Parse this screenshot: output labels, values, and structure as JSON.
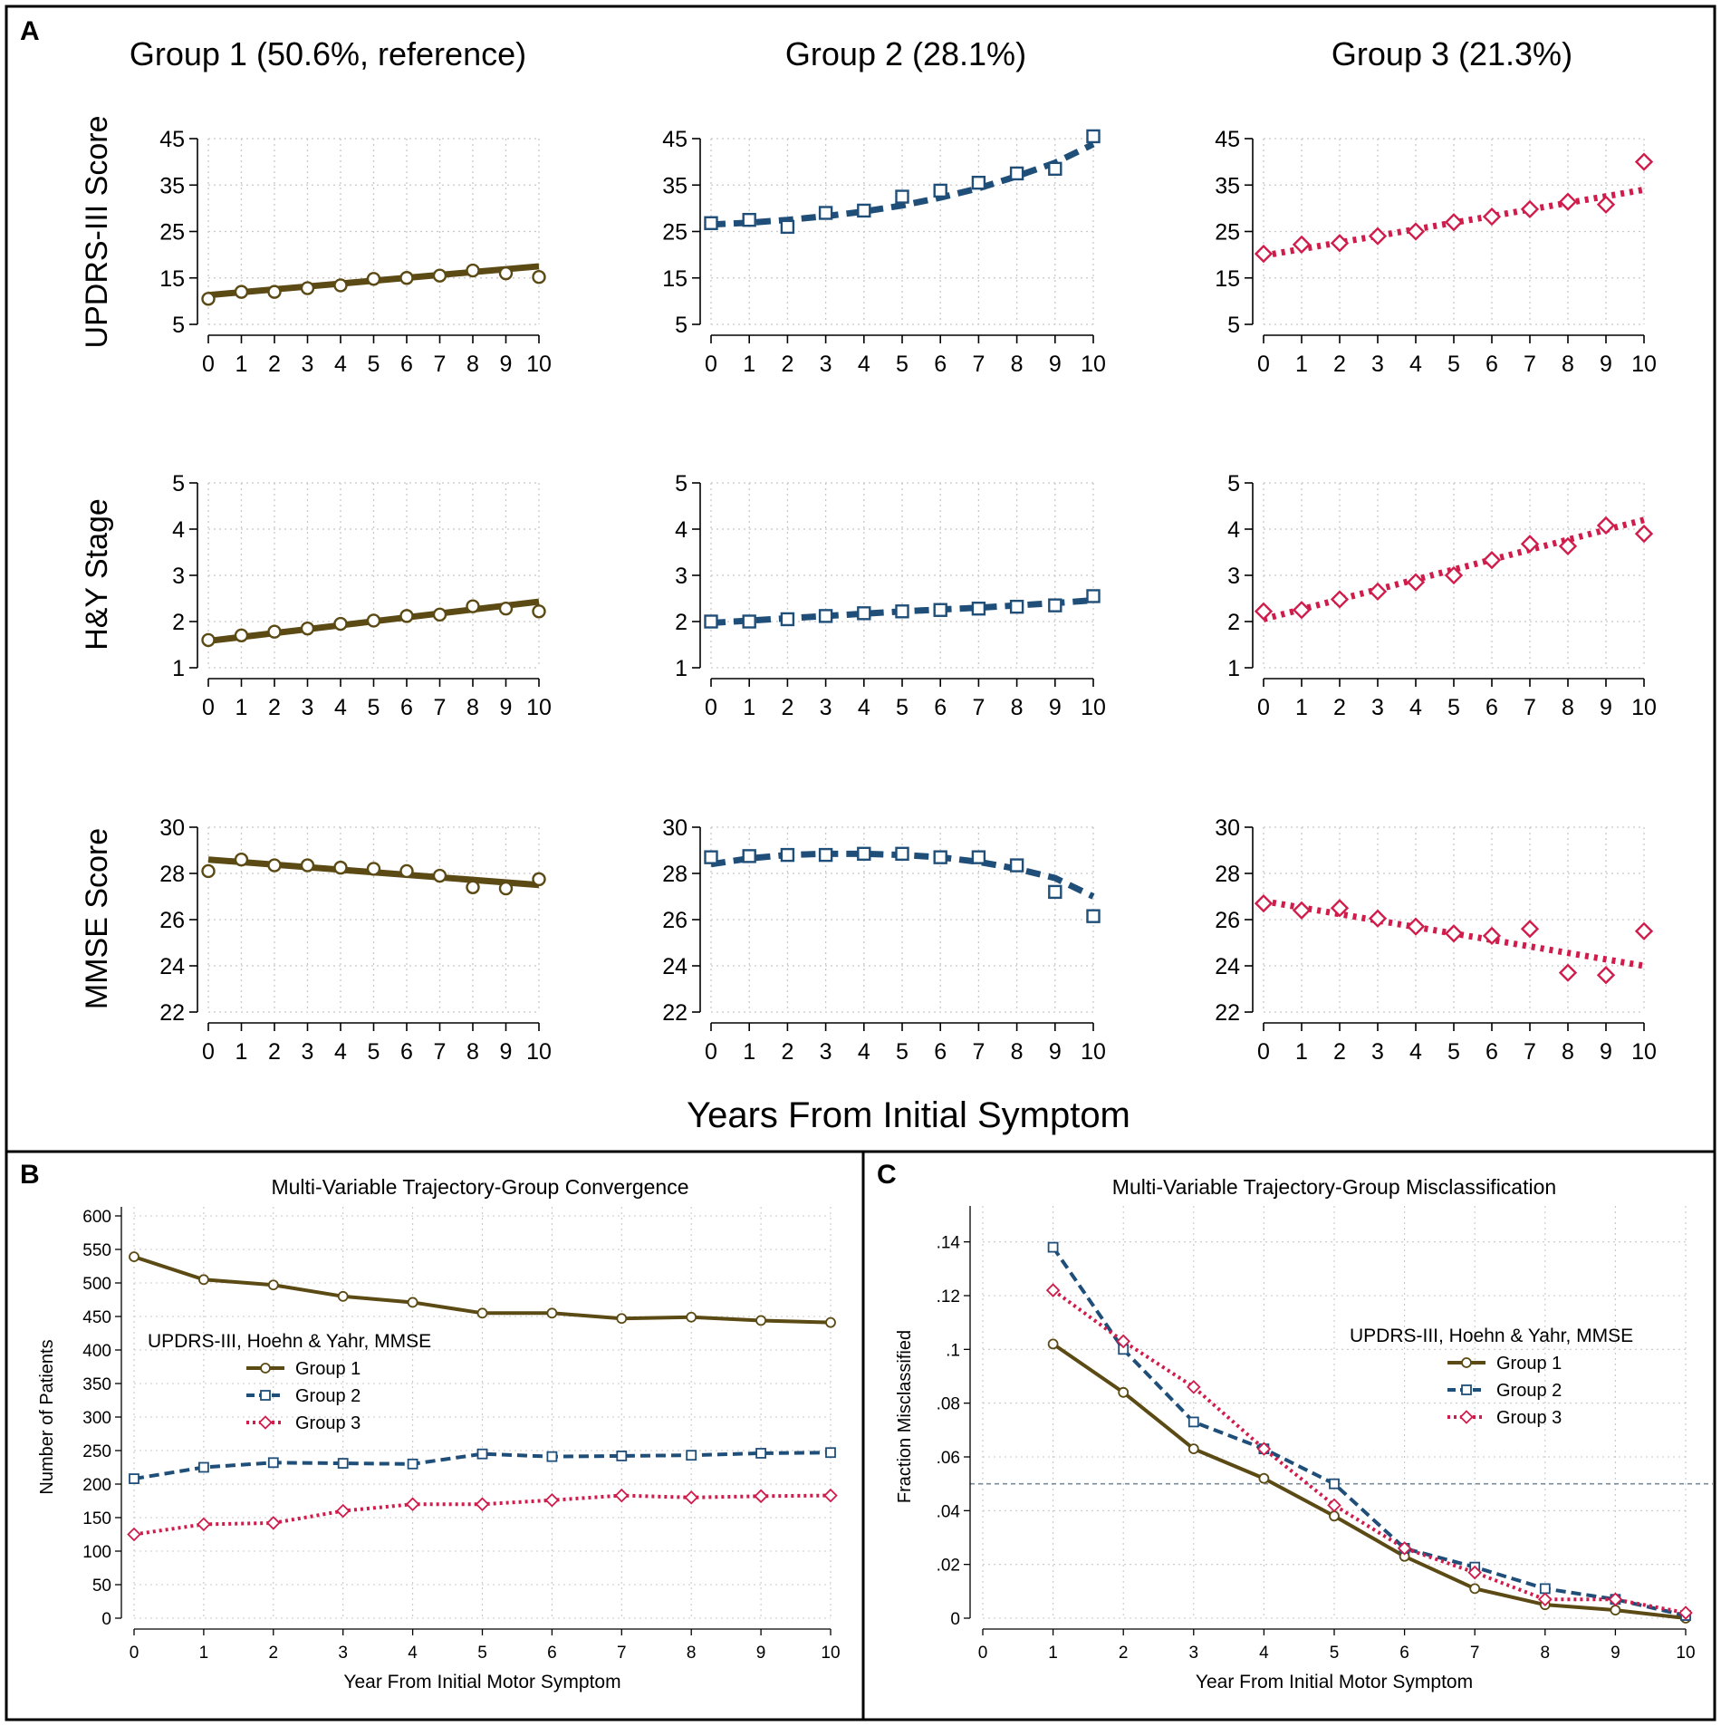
{
  "figure": {
    "panel_a_letter": "A",
    "panel_b_letter": "B",
    "panel_c_letter": "C",
    "panel_a_xlabel": "Years From Initial Symptom"
  },
  "colors": {
    "group1": "#5b4a14",
    "group2": "#1f4e79",
    "group3": "#d01c4b",
    "grid": "#c8c8c8",
    "refline": "#7a8a99"
  },
  "chart_data": [
    {
      "id": "panelA",
      "type": "line",
      "column_titles": [
        "Group 1 (50.6%, reference)",
        "Group 2 (28.1%)",
        "Group 3 (21.3%)"
      ],
      "row_ylabels": [
        "UPDRS-III Score",
        "H&Y Stage",
        "MMSE Score"
      ],
      "xlabel": "Years From Initial Symptom",
      "x": [
        0,
        1,
        2,
        3,
        4,
        5,
        6,
        7,
        8,
        9,
        10
      ],
      "rows": [
        {
          "ylim": [
            5,
            45
          ],
          "yticks": [
            5,
            15,
            25,
            35,
            45
          ],
          "cells": [
            {
              "group": "Group 1",
              "observed": [
                10.5,
                12,
                12,
                12.8,
                13.4,
                14.8,
                15,
                15.5,
                16.6,
                16,
                15.2
              ],
              "fitted_start": 11.3,
              "fitted_end": 17.5
            },
            {
              "group": "Group 2",
              "observed": [
                26.8,
                27.5,
                26,
                29,
                29.5,
                32.5,
                33.8,
                35.5,
                37.5,
                38.5,
                45.5
              ],
              "fitted": [
                26.5,
                26.9,
                27.5,
                28.3,
                29.3,
                30.6,
                32.3,
                34.3,
                36.9,
                39.8,
                43.8
              ]
            },
            {
              "group": "Group 3",
              "observed": [
                20.2,
                22.2,
                22.5,
                24,
                25,
                27,
                28.2,
                29.8,
                31.4,
                30.8,
                40
              ],
              "fitted_start": 19.8,
              "fitted_end": 34
            }
          ]
        },
        {
          "ylim": [
            1,
            5
          ],
          "yticks": [
            1,
            2,
            3,
            4,
            5
          ],
          "cells": [
            {
              "group": "Group 1",
              "observed": [
                1.6,
                1.7,
                1.78,
                1.85,
                1.95,
                2.02,
                2.12,
                2.15,
                2.33,
                2.28,
                2.22
              ],
              "fitted_start": 1.58,
              "fitted_end": 2.43
            },
            {
              "group": "Group 2",
              "observed": [
                2.0,
                2.0,
                2.05,
                2.12,
                2.18,
                2.22,
                2.25,
                2.28,
                2.32,
                2.35,
                2.55
              ],
              "fitted": [
                1.97,
                2.02,
                2.07,
                2.12,
                2.17,
                2.22,
                2.26,
                2.3,
                2.35,
                2.4,
                2.46
              ]
            },
            {
              "group": "Group 3",
              "observed": [
                2.22,
                2.25,
                2.48,
                2.65,
                2.85,
                3.0,
                3.33,
                3.68,
                3.63,
                4.08,
                3.9
              ],
              "fitted_start": 2.05,
              "fitted_end": 4.2
            }
          ]
        },
        {
          "ylim": [
            22,
            30
          ],
          "yticks": [
            22,
            24,
            26,
            28,
            30
          ],
          "cells": [
            {
              "group": "Group 1",
              "observed": [
                28.1,
                28.6,
                28.35,
                28.35,
                28.25,
                28.2,
                28.1,
                27.9,
                27.4,
                27.35,
                27.75
              ],
              "fitted_start": 28.6,
              "fitted_end": 27.5
            },
            {
              "group": "Group 2",
              "observed": [
                28.7,
                28.75,
                28.8,
                28.8,
                28.85,
                28.85,
                28.7,
                28.7,
                28.35,
                27.2,
                26.15
              ],
              "fitted": [
                28.4,
                28.65,
                28.8,
                28.85,
                28.85,
                28.8,
                28.7,
                28.5,
                28.2,
                27.8,
                27.0
              ]
            },
            {
              "group": "Group 3",
              "observed": [
                26.7,
                26.4,
                26.5,
                26.05,
                25.7,
                25.4,
                25.3,
                25.6,
                23.7,
                23.6,
                25.5
              ],
              "fitted_start": 26.8,
              "fitted_end": 24.0
            }
          ]
        }
      ]
    },
    {
      "id": "panelB",
      "type": "line",
      "title": "Multi-Variable Trajectory-Group Convergence",
      "xlabel": "Year From Initial Motor Symptom",
      "ylabel": "Number of Patients",
      "xlim": [
        0,
        10
      ],
      "ylim": [
        0,
        600
      ],
      "yticks": [
        0,
        50,
        100,
        150,
        200,
        250,
        300,
        350,
        400,
        450,
        500,
        550,
        600
      ],
      "x": [
        0,
        1,
        2,
        3,
        4,
        5,
        6,
        7,
        8,
        9,
        10
      ],
      "legend_title": "UPDRS-III, Hoehn & Yahr, MMSE",
      "series": [
        {
          "name": "Group 1",
          "values": [
            539,
            505,
            497,
            480,
            471,
            455,
            455,
            447,
            449,
            444,
            441
          ]
        },
        {
          "name": "Group 2",
          "values": [
            208,
            225,
            232,
            231,
            230,
            245,
            241,
            242,
            243,
            246,
            247
          ]
        },
        {
          "name": "Group 3",
          "values": [
            125,
            140,
            142,
            160,
            170,
            170,
            176,
            183,
            180,
            182,
            183
          ]
        }
      ]
    },
    {
      "id": "panelC",
      "type": "line",
      "title": "Multi-Variable Trajectory-Group Misclassification",
      "xlabel": "Year From Initial Motor Symptom",
      "ylabel": "Fraction Misclassified",
      "xlim": [
        0,
        10
      ],
      "ylim": [
        0,
        0.15
      ],
      "yticks": [
        0,
        0.02,
        0.04,
        0.06,
        0.08,
        0.1,
        0.12,
        0.14
      ],
      "ytick_labels": [
        "0",
        ".02",
        ".04",
        ".06",
        ".08",
        ".1",
        ".12",
        ".14"
      ],
      "xticks": [
        0,
        1,
        2,
        3,
        4,
        5,
        6,
        7,
        8,
        9,
        10
      ],
      "x": [
        1,
        2,
        3,
        4,
        5,
        6,
        7,
        8,
        9,
        10
      ],
      "reference_line": 0.05,
      "legend_title": "UPDRS-III, Hoehn & Yahr, MMSE",
      "series": [
        {
          "name": "Group 1",
          "values": [
            0.102,
            0.084,
            0.063,
            0.052,
            0.038,
            0.023,
            0.011,
            0.005,
            0.003,
            0.0
          ]
        },
        {
          "name": "Group 2",
          "values": [
            0.138,
            0.1,
            0.073,
            0.063,
            0.05,
            0.026,
            0.019,
            0.011,
            0.007,
            0.001
          ]
        },
        {
          "name": "Group 3",
          "values": [
            0.122,
            0.103,
            0.086,
            0.063,
            0.042,
            0.026,
            0.017,
            0.007,
            0.007,
            0.002
          ]
        }
      ]
    }
  ]
}
